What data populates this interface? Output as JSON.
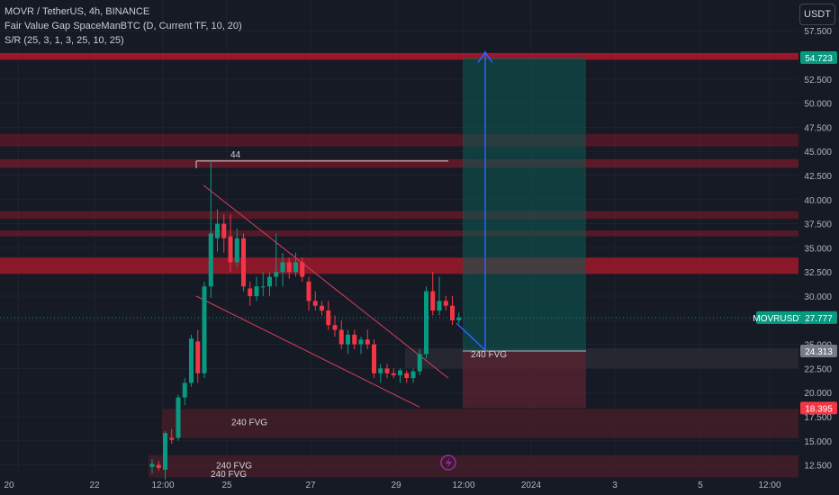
{
  "legend": {
    "symbol": "MOVR / TetherUS, 4h, BINANCE",
    "indicator1": "Fair Value Gap SpaceManBTC (D, Current TF, 10, 20)",
    "indicator2": "S/R (25, 3, 1, 3, 25, 10, 25)"
  },
  "currency_button": "USDT",
  "price_axis": {
    "ticks": [
      "57.500",
      "55.000",
      "52.500",
      "50.000",
      "47.500",
      "45.000",
      "42.500",
      "40.000",
      "37.500",
      "35.000",
      "32.500",
      "30.000",
      "27.500",
      "25.000",
      "22.500",
      "20.000",
      "17.500",
      "15.000",
      "12.500"
    ],
    "tick_values": [
      57.5,
      55,
      52.5,
      50,
      47.5,
      45,
      42.5,
      40,
      37.5,
      35,
      32.5,
      30,
      27.5,
      25,
      22.5,
      20,
      17.5,
      15,
      12.5
    ]
  },
  "price_labels": [
    {
      "text": "54.723",
      "value": 54.723,
      "color": "#089981"
    },
    {
      "text": "MOVRUSDT",
      "value": 27.777,
      "color": "#089981"
    },
    {
      "text": "27.777",
      "value": 27.777,
      "color": "#089981"
    },
    {
      "text": "24.313",
      "value": 24.313,
      "color": "#787b86"
    },
    {
      "text": "18.395",
      "value": 18.395,
      "color": "#f23645"
    }
  ],
  "time_axis": [
    "20",
    "22",
    "12:00",
    "25",
    "27",
    "29",
    "12:00",
    "2024",
    "3",
    "5",
    "12:00"
  ],
  "annotations": {
    "high_label": "44",
    "fvg_labels": [
      "240 FVG",
      "240 FVG",
      "240 FVG",
      "240 FVG"
    ]
  },
  "colors": {
    "up": "#089981",
    "down": "#f23645",
    "background": "#161a25",
    "position_target": "#0d5b52",
    "position_stop": "#5e2230",
    "arrow": "#2962ff"
  },
  "chart_data": {
    "type": "candlestick",
    "symbol": "MOVR/USDT",
    "timeframe": "4h",
    "ylim": [
      11,
      59.5
    ],
    "candles": [
      {
        "o": 12.3,
        "h": 13.1,
        "l": 11.6,
        "c": 12.6
      },
      {
        "o": 12.5,
        "h": 12.9,
        "l": 11.9,
        "c": 12.2
      },
      {
        "o": 12.0,
        "h": 16.0,
        "l": 11.0,
        "c": 15.8
      },
      {
        "o": 15.3,
        "h": 16.2,
        "l": 14.7,
        "c": 15.1
      },
      {
        "o": 15.3,
        "h": 19.8,
        "l": 15.0,
        "c": 19.5
      },
      {
        "o": 19.5,
        "h": 21.5,
        "l": 18.7,
        "c": 21.0
      },
      {
        "o": 21.0,
        "h": 26.0,
        "l": 20.6,
        "c": 25.6
      },
      {
        "o": 25.3,
        "h": 26.5,
        "l": 21.0,
        "c": 22.0
      },
      {
        "o": 22.0,
        "h": 31.5,
        "l": 21.5,
        "c": 31.0
      },
      {
        "o": 31.0,
        "h": 44.0,
        "l": 29.8,
        "c": 36.5
      },
      {
        "o": 36.0,
        "h": 39.0,
        "l": 34.6,
        "c": 37.5
      },
      {
        "o": 37.5,
        "h": 38.5,
        "l": 34.5,
        "c": 36.0
      },
      {
        "o": 36.2,
        "h": 38.5,
        "l": 32.5,
        "c": 33.5
      },
      {
        "o": 33.5,
        "h": 37.0,
        "l": 33.0,
        "c": 36.0
      },
      {
        "o": 36.0,
        "h": 36.5,
        "l": 30.5,
        "c": 31.0
      },
      {
        "o": 30.8,
        "h": 31.5,
        "l": 29.0,
        "c": 30.0
      },
      {
        "o": 30.0,
        "h": 32.0,
        "l": 29.5,
        "c": 31.0
      },
      {
        "o": 31.0,
        "h": 32.5,
        "l": 30.0,
        "c": 31.0
      },
      {
        "o": 31.0,
        "h": 32.5,
        "l": 30.0,
        "c": 32.0
      },
      {
        "o": 32.0,
        "h": 36.5,
        "l": 31.0,
        "c": 32.5
      },
      {
        "o": 32.5,
        "h": 34.5,
        "l": 31.0,
        "c": 33.5
      },
      {
        "o": 33.5,
        "h": 34.0,
        "l": 31.8,
        "c": 32.5
      },
      {
        "o": 32.5,
        "h": 34.5,
        "l": 32.0,
        "c": 33.5
      },
      {
        "o": 33.5,
        "h": 34.0,
        "l": 31.5,
        "c": 32.0
      },
      {
        "o": 31.5,
        "h": 32.0,
        "l": 28.5,
        "c": 29.5
      },
      {
        "o": 29.5,
        "h": 30.5,
        "l": 28.5,
        "c": 29.0
      },
      {
        "o": 29.0,
        "h": 29.5,
        "l": 28.0,
        "c": 28.5
      },
      {
        "o": 28.5,
        "h": 29.5,
        "l": 26.5,
        "c": 27.0
      },
      {
        "o": 27.0,
        "h": 28.0,
        "l": 25.8,
        "c": 26.5
      },
      {
        "o": 26.5,
        "h": 27.5,
        "l": 24.5,
        "c": 25.0
      },
      {
        "o": 25.0,
        "h": 26.5,
        "l": 24.0,
        "c": 26.0
      },
      {
        "o": 26.0,
        "h": 26.5,
        "l": 24.5,
        "c": 25.0
      },
      {
        "o": 25.0,
        "h": 25.8,
        "l": 24.0,
        "c": 25.5
      },
      {
        "o": 25.5,
        "h": 26.5,
        "l": 24.5,
        "c": 25.0
      },
      {
        "o": 25.0,
        "h": 25.5,
        "l": 21.5,
        "c": 22.0
      },
      {
        "o": 22.0,
        "h": 23.0,
        "l": 21.0,
        "c": 22.5
      },
      {
        "o": 22.5,
        "h": 23.0,
        "l": 21.5,
        "c": 22.0
      },
      {
        "o": 22.0,
        "h": 22.5,
        "l": 21.5,
        "c": 21.8
      },
      {
        "o": 21.8,
        "h": 22.5,
        "l": 21.0,
        "c": 22.3
      },
      {
        "o": 22.0,
        "h": 22.3,
        "l": 21.0,
        "c": 21.5
      },
      {
        "o": 21.5,
        "h": 22.5,
        "l": 21.0,
        "c": 22.2
      },
      {
        "o": 22.2,
        "h": 24.5,
        "l": 21.8,
        "c": 24.0
      },
      {
        "o": 24.0,
        "h": 31.0,
        "l": 23.5,
        "c": 30.5
      },
      {
        "o": 30.5,
        "h": 32.5,
        "l": 28.0,
        "c": 28.5
      },
      {
        "o": 28.5,
        "h": 32.0,
        "l": 28.0,
        "c": 29.5
      },
      {
        "o": 29.5,
        "h": 30.0,
        "l": 28.5,
        "c": 29.0
      },
      {
        "o": 29.0,
        "h": 30.0,
        "l": 27.0,
        "c": 27.5
      },
      {
        "o": 27.5,
        "h": 28.3,
        "l": 27.2,
        "c": 27.777
      }
    ]
  }
}
